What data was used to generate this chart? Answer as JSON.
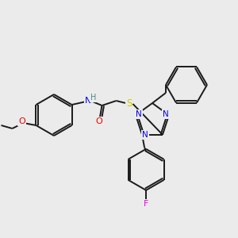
{
  "background_color": "#ebebeb",
  "bond_color": "#1a1a1a",
  "atom_colors": {
    "N": "#0000ee",
    "O": "#ee0000",
    "S": "#cccc00",
    "F": "#ee00ee",
    "H": "#4a8a8a",
    "C": "#1a1a1a"
  },
  "figsize": [
    3.0,
    3.0
  ],
  "dpi": 100
}
